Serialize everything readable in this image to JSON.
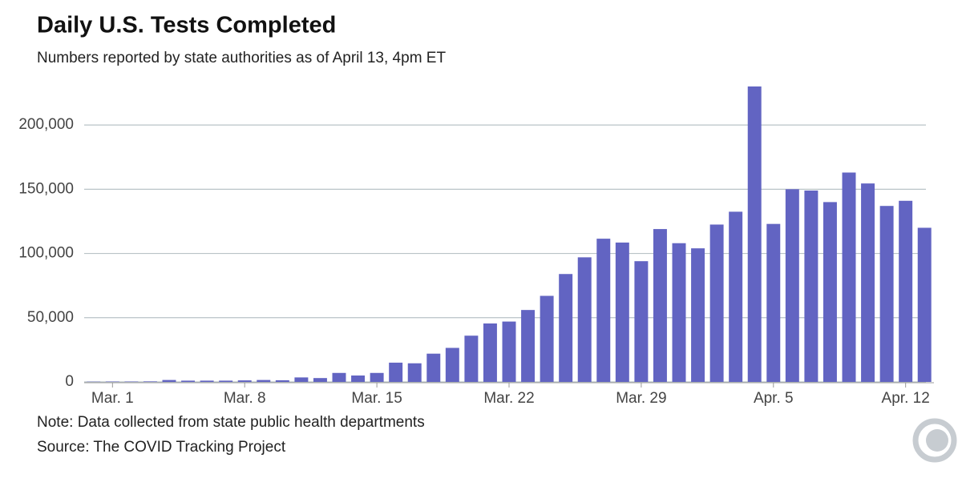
{
  "chart_data": {
    "type": "bar",
    "title": "Daily U.S. Tests Completed",
    "subtitle": "Numbers reported by state authorities as of April 13, 4pm ET",
    "note": "Note: Data collected from state public health departments",
    "source": "Source: The COVID Tracking Project",
    "categories": [
      null,
      "Mar. 1",
      null,
      null,
      null,
      null,
      null,
      null,
      "Mar. 8",
      null,
      null,
      null,
      null,
      null,
      null,
      "Mar. 15",
      null,
      null,
      null,
      null,
      null,
      null,
      "Mar. 22",
      null,
      null,
      null,
      null,
      null,
      null,
      "Mar. 29",
      null,
      null,
      null,
      null,
      null,
      null,
      "Apr. 5",
      null,
      null,
      null,
      null,
      null,
      null,
      "Apr. 12",
      null
    ],
    "values": [
      200,
      300,
      300,
      400,
      1500,
      1000,
      1000,
      1000,
      1200,
      1500,
      1300,
      3500,
      3000,
      7000,
      5000,
      7000,
      15000,
      14500,
      22000,
      26500,
      36000,
      45500,
      47000,
      56000,
      67000,
      84000,
      97000,
      111500,
      108500,
      94000,
      119000,
      108000,
      104000,
      122500,
      132500,
      230000,
      123000,
      150000,
      149000,
      140000,
      163000,
      154500,
      137000,
      141000,
      120000
    ],
    "color": "#6264c2",
    "ylim": [
      0,
      230000
    ],
    "yticks": [
      0,
      {
        "value": 50000,
        "label": "50,000"
      },
      {
        "value": 100000,
        "label": "100,000"
      },
      {
        "value": 150000,
        "label": "150,000"
      },
      {
        "value": 200000,
        "label": "200,000"
      }
    ],
    "grid": true
  }
}
